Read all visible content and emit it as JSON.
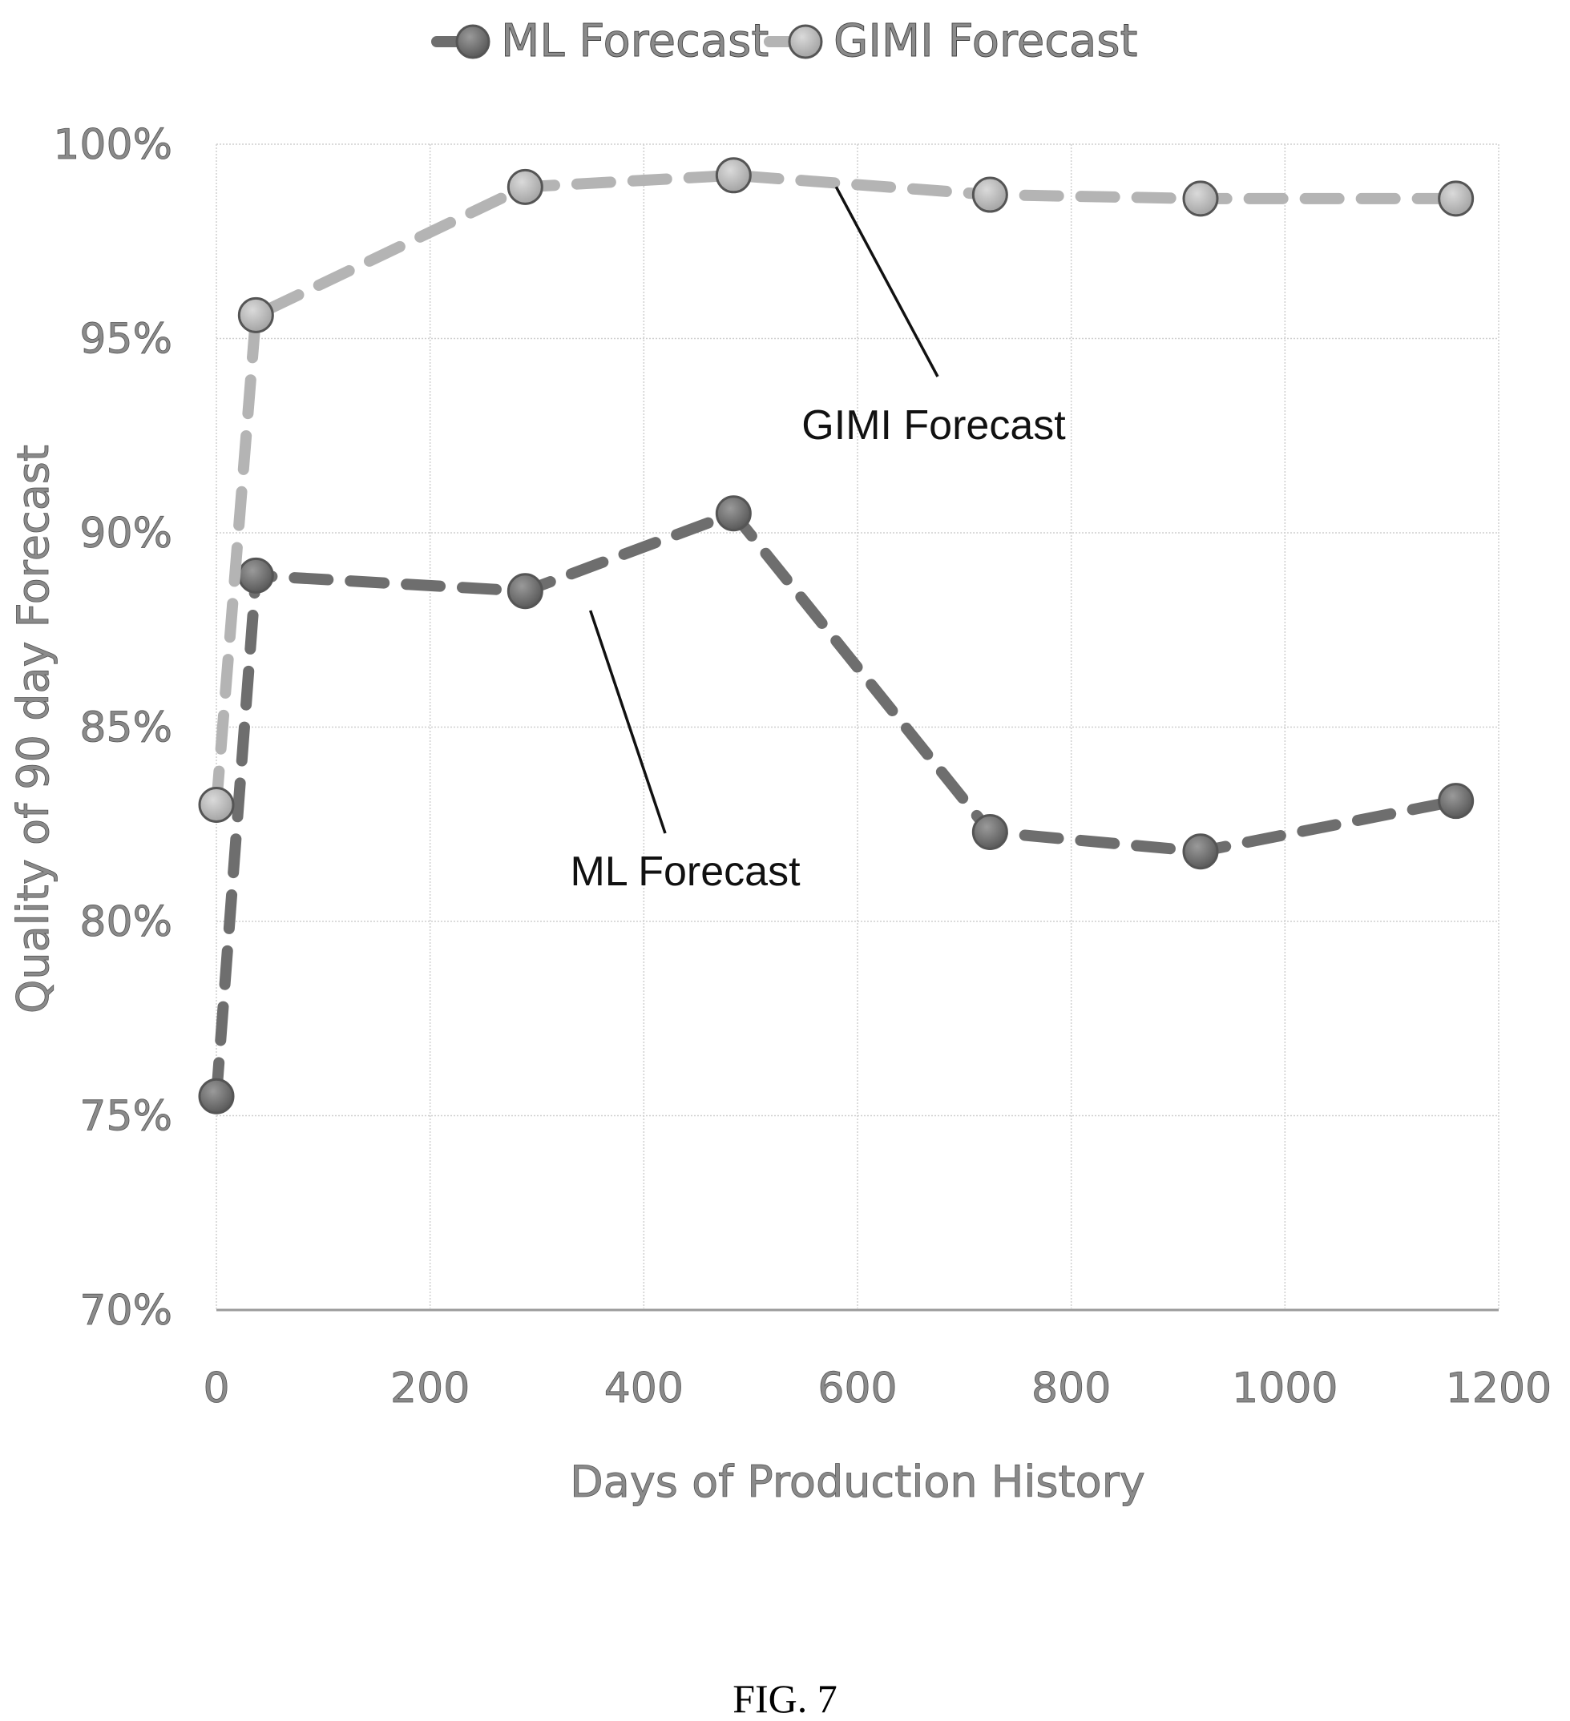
{
  "figure_caption": "FIG. 7",
  "chart_data": {
    "type": "line",
    "xlabel": "Days of Production History",
    "ylabel": "Quality of 90 day Forecast",
    "xlim": [
      0,
      1200
    ],
    "ylim": [
      70,
      100
    ],
    "x_ticks": [
      0,
      200,
      400,
      600,
      800,
      1000,
      1200
    ],
    "y_ticks": [
      70,
      75,
      80,
      85,
      90,
      95,
      100
    ],
    "y_tick_labels": [
      "70%",
      "75%",
      "80%",
      "85%",
      "90%",
      "95%",
      "100%"
    ],
    "x_tick_labels": [
      "0",
      "200",
      "400",
      "600",
      "800",
      "1000",
      "1200"
    ],
    "grid": true,
    "legend_position": "top",
    "series": [
      {
        "name": "ML Forecast",
        "color": "#6e6e6e",
        "line_style": "dashed",
        "marker": "circle",
        "x": [
          0,
          37,
          289,
          484,
          724,
          921,
          1160
        ],
        "y": [
          75.5,
          88.9,
          88.5,
          90.5,
          82.3,
          81.8,
          83.1
        ]
      },
      {
        "name": "GIMI Forecast",
        "color": "#b4b4b4",
        "line_style": "dashed",
        "marker": "circle",
        "x": [
          0,
          37,
          289,
          484,
          724,
          921,
          1160
        ],
        "y": [
          83.0,
          95.6,
          98.9,
          99.2,
          98.7,
          98.6,
          98.6
        ]
      }
    ],
    "annotations": [
      {
        "text": "GIMI Forecast",
        "series": "GIMI Forecast",
        "arrow_to_x": 580,
        "arrow_to_y": 98.9
      },
      {
        "text": "ML Forecast",
        "series": "ML Forecast",
        "arrow_to_x": 350,
        "arrow_to_y": 88.0
      }
    ]
  }
}
